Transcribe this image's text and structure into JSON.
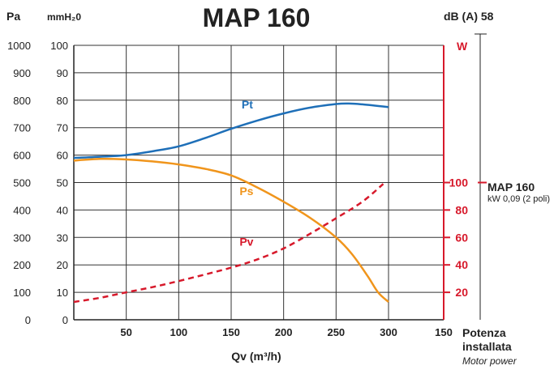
{
  "chart_data": {
    "type": "line",
    "title": "MAP 160",
    "noise_label": "dB (A) 58",
    "left_axis_unit": "Pa",
    "second_axis_unit": "mmH₂0",
    "right_axis_unit": "W",
    "xlabel": "Qv (m³/h)",
    "x_ticks": [
      0,
      50,
      100,
      150,
      200,
      250,
      300
    ],
    "x_edge_tick": "150",
    "ylim": [
      0,
      100
    ],
    "y_ticks_pa": [
      "1000",
      "900",
      "800",
      "700",
      "600",
      "500",
      "400",
      "300",
      "200",
      "100",
      "0"
    ],
    "y_ticks_mm": [
      "100",
      "90",
      "80",
      "70",
      "60",
      "50",
      "40",
      "30",
      "20",
      "10"
    ],
    "right_ticks": [
      "100",
      "80",
      "60",
      "40",
      "20"
    ],
    "right_scale": {
      "watt_per_mm": 2
    },
    "grid": true,
    "series": [
      {
        "name": "Pt",
        "color": "#1e6fb8",
        "dashed": false,
        "label_x": 160,
        "label_y": 77,
        "points": [
          [
            0,
            59
          ],
          [
            25,
            59.4
          ],
          [
            50,
            60
          ],
          [
            75,
            61.4
          ],
          [
            100,
            63.2
          ],
          [
            125,
            66.2
          ],
          [
            150,
            69.6
          ],
          [
            175,
            72.6
          ],
          [
            200,
            75.2
          ],
          [
            225,
            77.3
          ],
          [
            250,
            78.6
          ],
          [
            262,
            78.8
          ],
          [
            275,
            78.5
          ],
          [
            300,
            77.5
          ]
        ]
      },
      {
        "name": "Ps",
        "color": "#f0951c",
        "dashed": false,
        "label_x": 158,
        "label_y": 45.5,
        "points": [
          [
            0,
            58
          ],
          [
            25,
            58.6
          ],
          [
            50,
            58.4
          ],
          [
            75,
            57.7
          ],
          [
            100,
            56.6
          ],
          [
            125,
            55
          ],
          [
            150,
            52.6
          ],
          [
            175,
            48.2
          ],
          [
            200,
            43
          ],
          [
            225,
            37.2
          ],
          [
            250,
            30
          ],
          [
            265,
            24
          ],
          [
            280,
            16
          ],
          [
            290,
            10
          ],
          [
            300,
            6.5
          ]
        ]
      },
      {
        "name": "Pv",
        "color": "#d7192b",
        "dashed": true,
        "label_x": 158,
        "label_y": 27,
        "points": [
          [
            0,
            6.5
          ],
          [
            25,
            8
          ],
          [
            50,
            10
          ],
          [
            75,
            11.9
          ],
          [
            100,
            14.1
          ],
          [
            125,
            16.5
          ],
          [
            150,
            19
          ],
          [
            175,
            22
          ],
          [
            200,
            26
          ],
          [
            225,
            31.3
          ],
          [
            250,
            37
          ],
          [
            275,
            43
          ],
          [
            295,
            49.5
          ]
        ]
      }
    ]
  },
  "side_label": {
    "model": "MAP 160",
    "power": "kW 0,09 (2 poli)"
  },
  "power_label": {
    "line1": "Potenza",
    "line2": "installata",
    "line3": "Motor power"
  }
}
